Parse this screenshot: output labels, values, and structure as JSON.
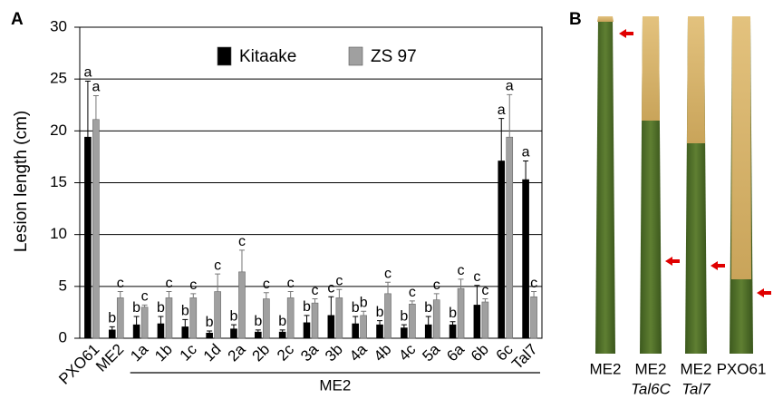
{
  "panel_a_label": "A",
  "chart_data": {
    "type": "bar",
    "y_label": "Lesion length (cm)",
    "categories": [
      "PXO61",
      "ME2",
      "1a",
      "1b",
      "1c",
      "1d",
      "2a",
      "2b",
      "2c",
      "3a",
      "3b",
      "4a",
      "4b",
      "4c",
      "5a",
      "6a",
      "6b",
      "6c",
      "Tal7"
    ],
    "group_label": "ME2",
    "series": [
      {
        "name": "Kitaake",
        "color": "#000000",
        "values": [
          19.4,
          0.8,
          1.3,
          1.4,
          1.1,
          0.5,
          0.9,
          0.6,
          0.6,
          1.5,
          2.2,
          1.4,
          1.3,
          1.0,
          1.3,
          1.3,
          3.2,
          17.1,
          15.3
        ],
        "errors": [
          5.4,
          0.3,
          0.8,
          0.7,
          0.7,
          0.2,
          0.4,
          0.2,
          0.2,
          0.7,
          1.8,
          0.7,
          0.4,
          0.3,
          0.8,
          0.3,
          1.9,
          4.1,
          1.8
        ],
        "letters": [
          "a",
          "b",
          "b",
          "b",
          "b",
          "b",
          "b",
          "b",
          "b",
          "b",
          "c",
          "b",
          "b",
          "b",
          "b",
          "b",
          "c",
          "a",
          "a"
        ]
      },
      {
        "name": "ZS 97",
        "color": "#a0a0a0",
        "values": [
          21.1,
          3.9,
          3.0,
          3.9,
          3.9,
          4.5,
          6.4,
          3.8,
          3.9,
          3.4,
          3.9,
          2.2,
          4.3,
          3.3,
          3.7,
          4.8,
          3.5,
          19.4,
          4.0
        ],
        "errors": [
          2.3,
          0.6,
          0.2,
          0.6,
          0.4,
          1.7,
          2.1,
          0.6,
          0.6,
          0.4,
          0.8,
          0.4,
          1.1,
          0.3,
          0.6,
          0.9,
          0.3,
          4.1,
          0.5
        ],
        "letters": [
          "a",
          "c",
          "c",
          "c",
          "c",
          "c",
          "c",
          "c",
          "c",
          "c",
          "c",
          "b",
          "c",
          "c",
          "c",
          "c",
          "c",
          "a",
          "c"
        ]
      }
    ],
    "ylim": [
      0,
      30
    ],
    "yticks": [
      0,
      5,
      10,
      15,
      20,
      25,
      30
    ],
    "grid": true
  },
  "panel_b": {
    "label": "B",
    "leaves": [
      {
        "line1": "ME2"
      },
      {
        "line1": "ME2",
        "line2": "Tal6C"
      },
      {
        "line1": "ME2",
        "line2": "Tal7"
      },
      {
        "line1": "PXO61"
      }
    ]
  }
}
